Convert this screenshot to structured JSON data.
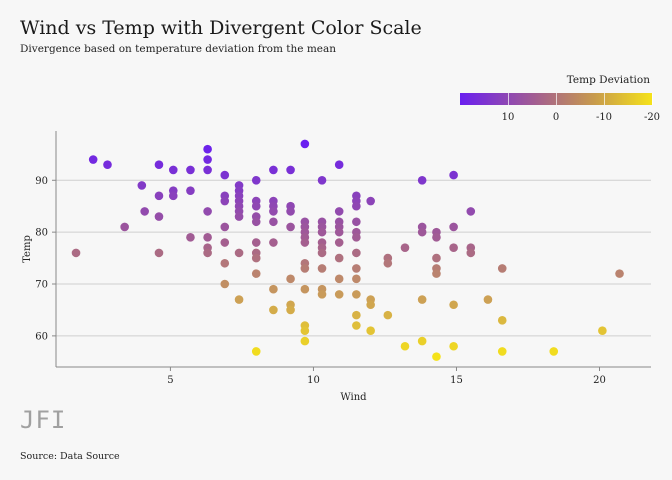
{
  "title": "Wind vs Temp with Divergent Color Scale",
  "subtitle": "Divergence based on temperature deviation from the mean",
  "source": "Source: Data Source",
  "logo": "JFI",
  "legend": {
    "title": "Temp Deviation",
    "tick_labels": [
      "10",
      "0",
      "-10",
      "-20"
    ],
    "tick_values": [
      10,
      0,
      -10,
      -20
    ],
    "range": [
      20,
      -20
    ]
  },
  "colors": {
    "low": "#f5e21a",
    "mid": "#a45f8f",
    "high": "#6a1ff0",
    "grid": "#cfcfcf",
    "background": "#f7f7f7"
  },
  "chart_data": {
    "type": "scatter",
    "title": "Wind vs Temp with Divergent Color Scale",
    "subtitle": "Divergence based on temperature deviation from the mean",
    "xlabel": "Wind",
    "ylabel": "Temp",
    "xlim": [
      1.0,
      21.8
    ],
    "ylim": [
      54,
      99.5
    ],
    "xticks": [
      5,
      10,
      15,
      20
    ],
    "yticks": [
      60,
      70,
      80,
      90
    ],
    "grid": "horizontal",
    "color_variable": "Temp Deviation",
    "mean_temp": 78,
    "points": [
      [
        2.3,
        94
      ],
      [
        2.8,
        93
      ],
      [
        4.0,
        89
      ],
      [
        4.6,
        93
      ],
      [
        5.1,
        92
      ],
      [
        5.7,
        92
      ],
      [
        6.3,
        96
      ],
      [
        6.3,
        94
      ],
      [
        6.3,
        92
      ],
      [
        6.9,
        91
      ],
      [
        7.4,
        89
      ],
      [
        8.0,
        90
      ],
      [
        8.6,
        92
      ],
      [
        9.2,
        92
      ],
      [
        9.7,
        97
      ],
      [
        10.3,
        90
      ],
      [
        10.9,
        93
      ],
      [
        14.9,
        91
      ],
      [
        13.8,
        90
      ],
      [
        4.1,
        84
      ],
      [
        4.6,
        87
      ],
      [
        4.6,
        83
      ],
      [
        5.1,
        88
      ],
      [
        5.1,
        87
      ],
      [
        5.7,
        88
      ],
      [
        6.3,
        84
      ],
      [
        6.9,
        87
      ],
      [
        6.9,
        86
      ],
      [
        7.4,
        88
      ],
      [
        7.4,
        87
      ],
      [
        7.4,
        86
      ],
      [
        7.4,
        85
      ],
      [
        7.4,
        84
      ],
      [
        7.4,
        83
      ],
      [
        8.0,
        86
      ],
      [
        8.0,
        85
      ],
      [
        8.0,
        83
      ],
      [
        8.0,
        82
      ],
      [
        8.6,
        86
      ],
      [
        8.6,
        85
      ],
      [
        8.6,
        84
      ],
      [
        8.6,
        82
      ],
      [
        9.2,
        85
      ],
      [
        9.2,
        84
      ],
      [
        9.2,
        81
      ],
      [
        9.7,
        82
      ],
      [
        9.7,
        81
      ],
      [
        9.7,
        80
      ],
      [
        9.7,
        79
      ],
      [
        10.3,
        82
      ],
      [
        10.3,
        81
      ],
      [
        10.3,
        80
      ],
      [
        10.9,
        84
      ],
      [
        10.9,
        82
      ],
      [
        10.9,
        81
      ],
      [
        11.5,
        87
      ],
      [
        11.5,
        86
      ],
      [
        11.5,
        85
      ],
      [
        11.5,
        82
      ],
      [
        12.0,
        86
      ],
      [
        15.5,
        84
      ],
      [
        10.9,
        78
      ],
      [
        3.4,
        81
      ],
      [
        1.7,
        76
      ],
      [
        4.6,
        76
      ],
      [
        5.7,
        79
      ],
      [
        6.3,
        79
      ],
      [
        6.3,
        77
      ],
      [
        6.3,
        76
      ],
      [
        6.9,
        81
      ],
      [
        6.9,
        78
      ],
      [
        7.4,
        76
      ],
      [
        8.0,
        78
      ],
      [
        8.0,
        76
      ],
      [
        8.0,
        75
      ],
      [
        8.6,
        78
      ],
      [
        9.7,
        78
      ],
      [
        10.3,
        78
      ],
      [
        10.3,
        77
      ],
      [
        10.3,
        76
      ],
      [
        10.9,
        80
      ],
      [
        10.9,
        75
      ],
      [
        11.5,
        80
      ],
      [
        11.5,
        79
      ],
      [
        11.5,
        76
      ],
      [
        12.6,
        75
      ],
      [
        12.6,
        74
      ],
      [
        13.2,
        77
      ],
      [
        13.8,
        81
      ],
      [
        13.8,
        80
      ],
      [
        14.3,
        80
      ],
      [
        14.3,
        79
      ],
      [
        14.3,
        75
      ],
      [
        14.9,
        81
      ],
      [
        14.9,
        77
      ],
      [
        15.5,
        77
      ],
      [
        15.5,
        76
      ],
      [
        16.6,
        73
      ],
      [
        20.7,
        72
      ],
      [
        6.9,
        74
      ],
      [
        6.9,
        70
      ],
      [
        7.4,
        67
      ],
      [
        8.0,
        72
      ],
      [
        8.6,
        69
      ],
      [
        8.6,
        65
      ],
      [
        9.2,
        71
      ],
      [
        9.2,
        66
      ],
      [
        9.2,
        65
      ],
      [
        9.7,
        74
      ],
      [
        9.7,
        73
      ],
      [
        9.7,
        69
      ],
      [
        9.7,
        62
      ],
      [
        9.7,
        61
      ],
      [
        9.7,
        59
      ],
      [
        10.3,
        73
      ],
      [
        10.3,
        69
      ],
      [
        10.3,
        68
      ],
      [
        10.9,
        71
      ],
      [
        10.9,
        68
      ],
      [
        11.5,
        73
      ],
      [
        11.5,
        71
      ],
      [
        11.5,
        68
      ],
      [
        11.5,
        64
      ],
      [
        11.5,
        62
      ],
      [
        12.0,
        67
      ],
      [
        12.0,
        66
      ],
      [
        12.0,
        61
      ],
      [
        12.6,
        64
      ],
      [
        13.2,
        58
      ],
      [
        13.8,
        67
      ],
      [
        13.8,
        59
      ],
      [
        14.3,
        73
      ],
      [
        14.3,
        72
      ],
      [
        14.3,
        56
      ],
      [
        14.9,
        66
      ],
      [
        14.9,
        58
      ],
      [
        16.1,
        67
      ],
      [
        16.6,
        63
      ],
      [
        16.6,
        57
      ],
      [
        18.4,
        57
      ],
      [
        20.1,
        61
      ],
      [
        8.0,
        57
      ]
    ]
  }
}
